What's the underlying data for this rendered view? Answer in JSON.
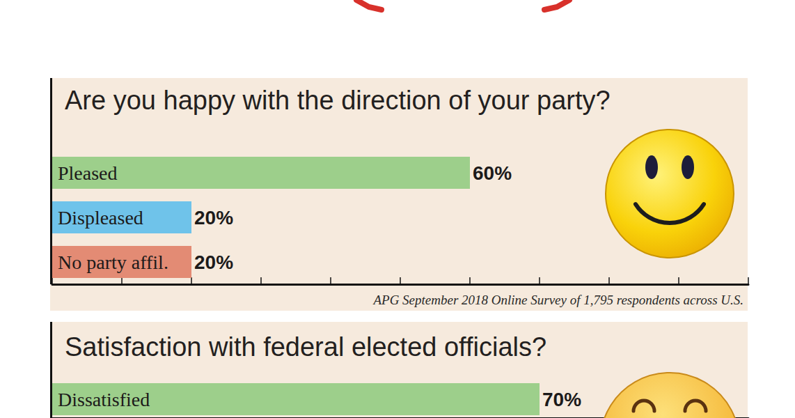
{
  "chart_data": [
    {
      "type": "bar",
      "orientation": "horizontal",
      "title": "Are you happy with the direction of your party?",
      "categories": [
        "Pleased",
        "Displeased",
        "No party affil."
      ],
      "values": [
        60,
        20,
        20
      ],
      "value_labels": [
        "60%",
        "20%",
        "20%"
      ],
      "colors": [
        "#9dcf8b",
        "#6fc3ea",
        "#e38b74"
      ],
      "xlim": [
        0,
        100
      ],
      "xticks": [
        0,
        10,
        20,
        30,
        40,
        50,
        60,
        70,
        80,
        90,
        100
      ],
      "grid": false,
      "data_labels": true,
      "tick_labels": "y",
      "annotation": "APG September 2018 Online Survey of 1,795 respondents across U.S."
    },
    {
      "type": "bar",
      "orientation": "horizontal",
      "title": "Satisfaction with federal elected officials?",
      "categories": [
        "Dissatisfied"
      ],
      "values": [
        70
      ],
      "value_labels": [
        "70%"
      ],
      "colors": [
        "#9dcf8b"
      ],
      "xlim": [
        0,
        100
      ],
      "grid": false,
      "data_labels": true,
      "tick_labels": "y"
    }
  ]
}
